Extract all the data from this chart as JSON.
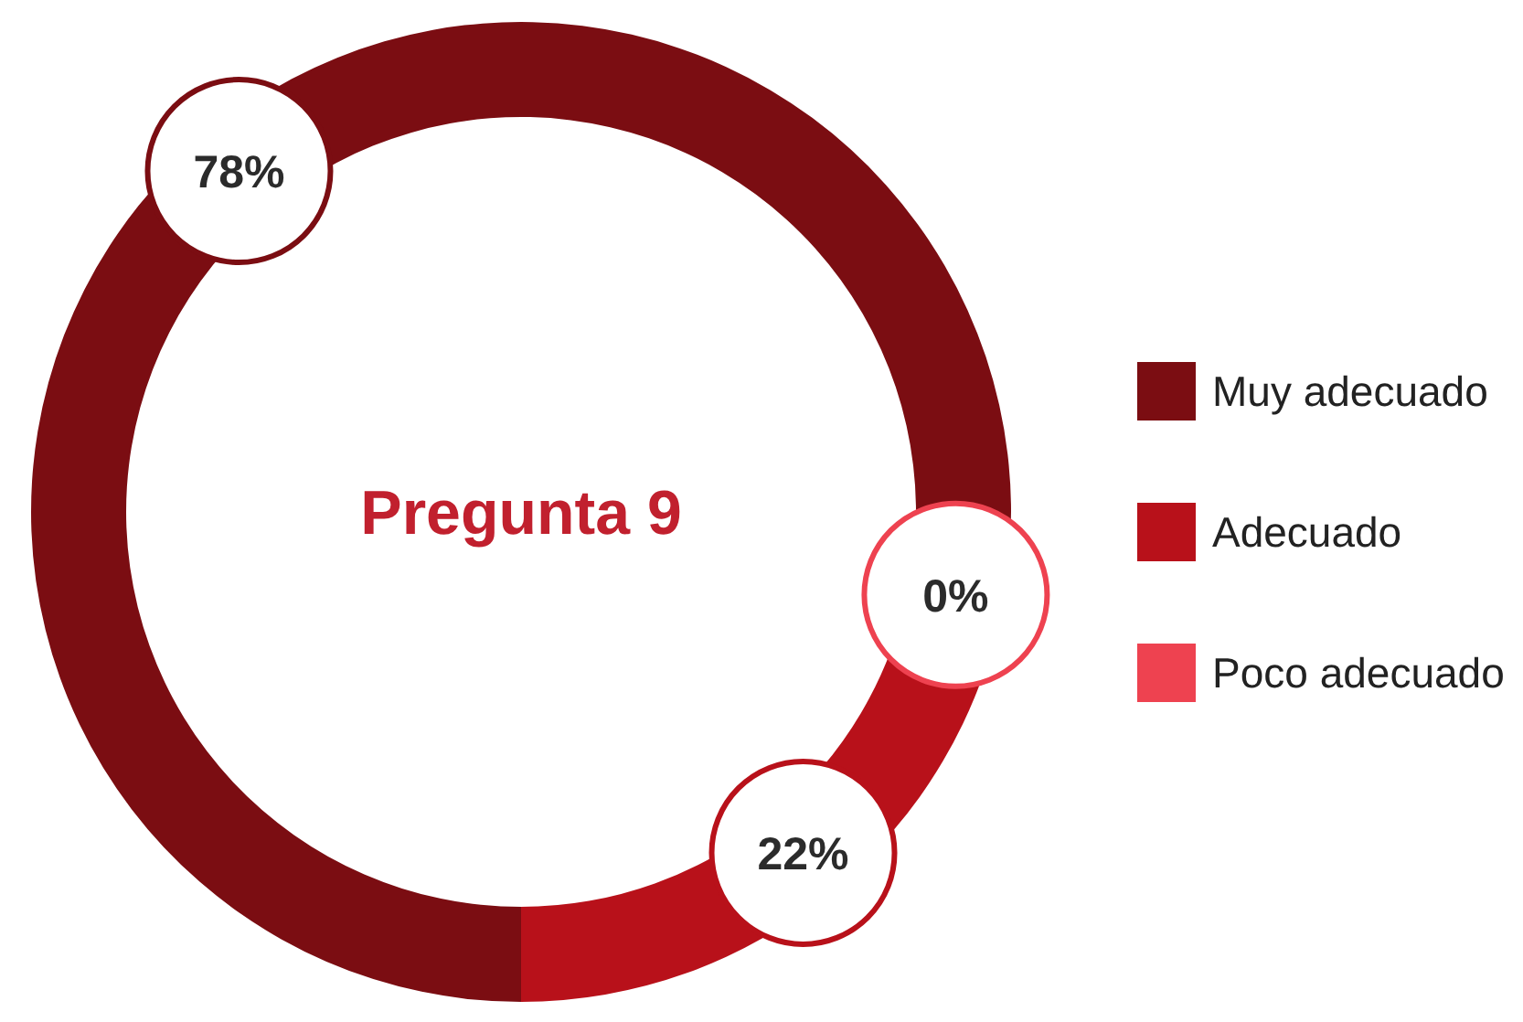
{
  "chart_data": {
    "type": "donut",
    "title": "Pregunta 9",
    "categories": [
      "Muy adecuado",
      "Adecuado",
      "Poco adecuado"
    ],
    "values": [
      78,
      22,
      0
    ],
    "colors": [
      "#7b0d12",
      "#b8111a",
      "#ee4250"
    ],
    "value_labels": [
      "78%",
      "22%",
      "0%"
    ],
    "legend": "right"
  }
}
